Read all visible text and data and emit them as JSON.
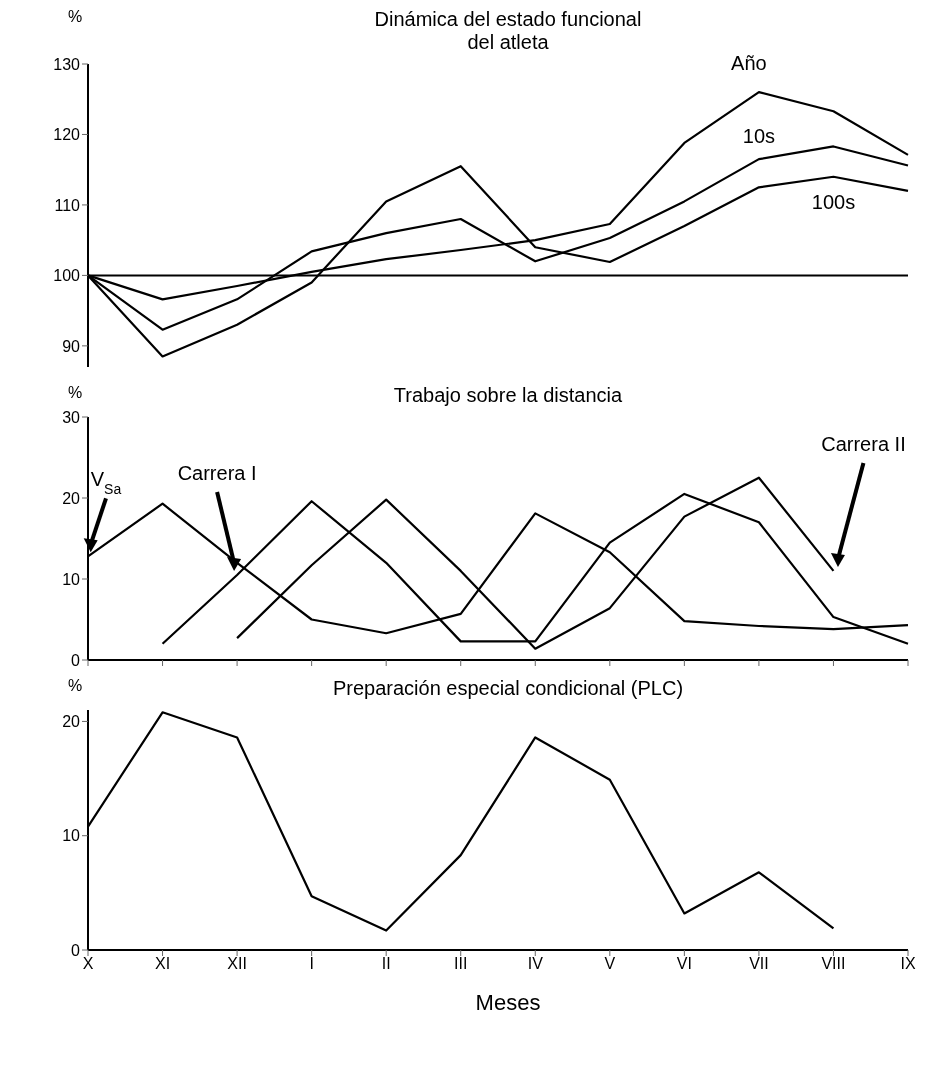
{
  "chart_data": [
    {
      "type": "line",
      "title": "Dinámica del estado funcional\ndel atleta",
      "ylabel": "%",
      "categories": [
        null,
        null,
        null,
        null,
        null,
        null,
        null,
        null,
        null,
        null,
        null,
        null
      ],
      "series": [
        {
          "name": "Año",
          "color": "#000000",
          "values": [
            100,
            96.6,
            98.5,
            100.5,
            102.3,
            103.6,
            105,
            107.3,
            118.8,
            126,
            123.3,
            117.1
          ]
        },
        {
          "name": "10s",
          "color": "#000000",
          "values": [
            100,
            92.3,
            96.6,
            103.4,
            106,
            108,
            102,
            105.3,
            110.5,
            116.5,
            118.3,
            115.6
          ]
        },
        {
          "name": "100s",
          "color": "#000000",
          "values": [
            100,
            88.5,
            93,
            99,
            110.5,
            115.5,
            104,
            101.9,
            107,
            112.5,
            114,
            112
          ]
        }
      ],
      "ylim": [
        87,
        130
      ],
      "yticks": [
        90,
        100,
        110,
        120,
        130
      ],
      "ref_lines": [
        {
          "axis": "y",
          "value": 100,
          "color": "#000000"
        }
      ],
      "tick_labels": "y",
      "grid": false,
      "legend": false,
      "marker": "none",
      "line_style": "solid"
    },
    {
      "type": "line",
      "title": "Trabajo sobre la distancia",
      "ylabel": "%",
      "categories": [
        null,
        null,
        null,
        null,
        null,
        null,
        null,
        null,
        null,
        null,
        null,
        null
      ],
      "series": [
        {
          "name": "V$_{Sa}$",
          "color": "#000000",
          "values": [
            12.8,
            19.3,
            12,
            5,
            3.3,
            5.7,
            18.1,
            13.3,
            4.8,
            4.2,
            3.8,
            4.3
          ]
        },
        {
          "name": "Carrera I",
          "color": "#000000",
          "values": [
            null,
            2,
            10.5,
            19.6,
            12,
            2.3,
            2.3,
            14.5,
            20.5,
            17,
            5.3,
            2
          ]
        },
        {
          "name": "Carrera II",
          "color": "#000000",
          "values": [
            null,
            null,
            2.7,
            11.7,
            19.8,
            11,
            1.4,
            6.4,
            17.7,
            22.5,
            11,
            null
          ]
        }
      ],
      "ylim": [
        0,
        30
      ],
      "yticks": [
        0,
        10,
        20,
        30
      ],
      "tick_labels": "y",
      "grid": false,
      "legend": false,
      "marker": "none",
      "line_style": "solid"
    },
    {
      "type": "line",
      "title": "Preparación especial condicional (PLC)",
      "ylabel": "%",
      "xlabel": "Meses",
      "categories": [
        "X",
        "XI",
        "XII",
        "I",
        "II",
        "III",
        "IV",
        "V",
        "VI",
        "VII",
        "VIII",
        "IX"
      ],
      "series": [
        {
          "color": "#000000",
          "values": [
            10.8,
            20.8,
            18.6,
            4.7,
            1.7,
            8.3,
            18.6,
            14.9,
            3.2,
            6.8,
            1.9,
            null
          ]
        }
      ],
      "ylim": [
        0,
        21
      ],
      "yticks": [
        0,
        10,
        20
      ],
      "grid": false,
      "legend": false,
      "marker": "none",
      "line_style": "solid"
    }
  ]
}
